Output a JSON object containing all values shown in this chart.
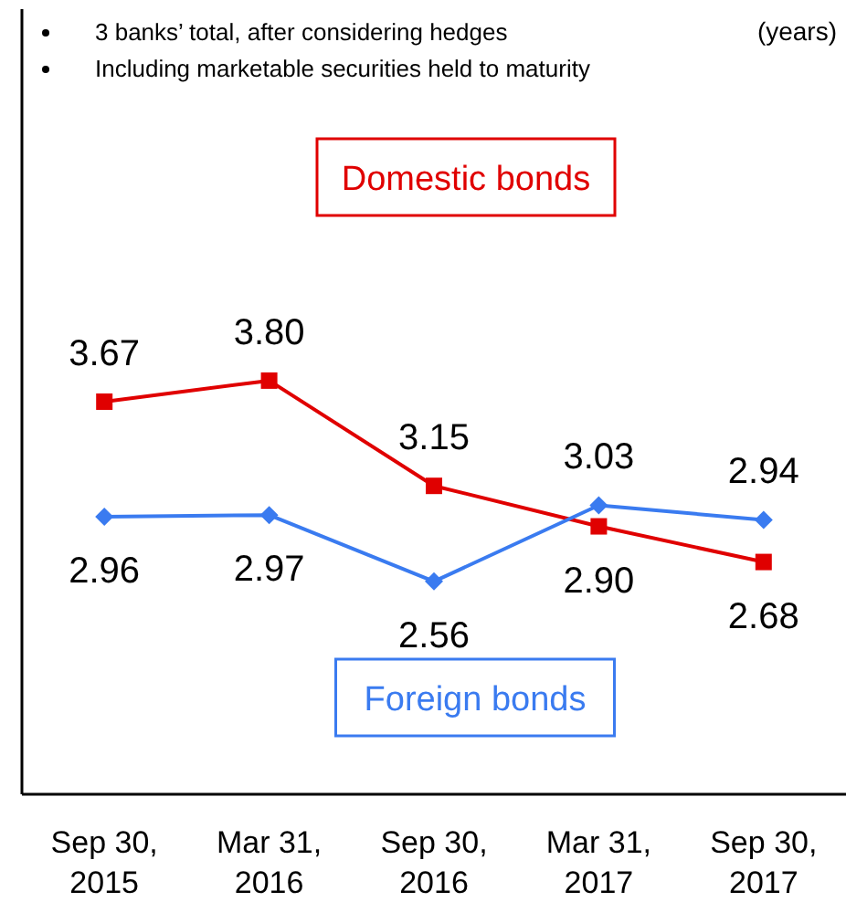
{
  "chart_data": {
    "type": "line",
    "categories": [
      "Sep 30, 2015",
      "Mar 31, 2016",
      "Sep 30, 2016",
      "Mar 31, 2017",
      "Sep 30, 2017"
    ],
    "series": [
      {
        "name": "Domestic bonds",
        "color": "#e00000",
        "marker": "square",
        "values": [
          3.67,
          3.8,
          3.15,
          2.9,
          2.68
        ],
        "value_labels": [
          "3.67",
          "3.80",
          "3.15",
          "2.90",
          "2.68"
        ]
      },
      {
        "name": "Foreign bonds",
        "color": "#3a7bf0",
        "marker": "diamond",
        "values": [
          2.96,
          2.97,
          2.56,
          3.03,
          2.94
        ],
        "value_labels": [
          "2.96",
          "2.97",
          "2.56",
          "3.03",
          "2.94"
        ]
      }
    ],
    "annotations": [
      "3 banks’ total, after considering hedges",
      "Including marketable securities held to maturity",
      "(years)"
    ],
    "legend": false,
    "tick_labels": "x"
  }
}
